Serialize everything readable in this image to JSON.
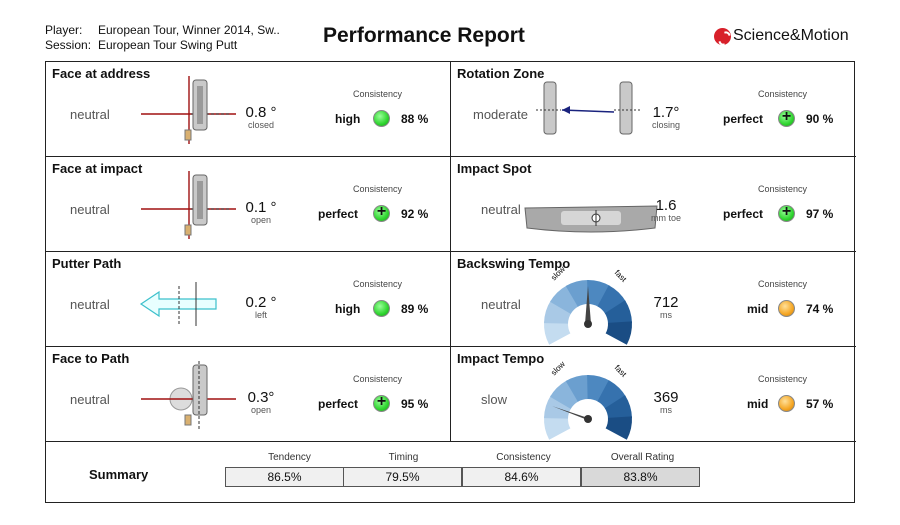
{
  "header": {
    "player_label": "Player:",
    "player_value": "European Tour, Winner 2014, Sw..",
    "session_label": "Session:",
    "session_value": "European Tour Swing Putt",
    "title": "Performance Report",
    "logo_text": "Science&Motion"
  },
  "consistency_label": "Consistency",
  "metrics": [
    {
      "title": "Face at address",
      "tendency": "neutral",
      "value": "0.8 °",
      "unit": "closed",
      "rating": "high",
      "percent": "88 %",
      "ball": "high"
    },
    {
      "title": "Rotation Zone",
      "tendency": "moderate",
      "value": "1.7°",
      "unit": "closing",
      "rating": "perfect",
      "percent": "90 %",
      "ball": "perfect"
    },
    {
      "title": "Face at impact",
      "tendency": "neutral",
      "value": "0.1 °",
      "unit": "open",
      "rating": "perfect",
      "percent": "92 %",
      "ball": "perfect"
    },
    {
      "title": "Impact Spot",
      "tendency": "neutral",
      "value": "1.6",
      "unit": "mm toe",
      "rating": "perfect",
      "percent": "97 %",
      "ball": "perfect"
    },
    {
      "title": "Putter Path",
      "tendency": "neutral",
      "value": "0.2 °",
      "unit": "left",
      "rating": "high",
      "percent": "89 %",
      "ball": "high"
    },
    {
      "title": "Backswing Tempo",
      "tendency": "neutral",
      "value": "712",
      "unit": "ms",
      "rating": "mid",
      "percent": "74 %",
      "ball": "mid"
    },
    {
      "title": "Face to Path",
      "tendency": "neutral",
      "value": "0.3°",
      "unit": "open",
      "rating": "perfect",
      "percent": "95 %",
      "ball": "perfect"
    },
    {
      "title": "Impact Tempo",
      "tendency": "slow",
      "value": "369",
      "unit": "ms",
      "rating": "mid",
      "percent": "57 %",
      "ball": "mid"
    }
  ],
  "gauges": {
    "slow_label": "slow",
    "fast_label": "fast",
    "backswing_needle_fraction": 0.5,
    "impact_needle_fraction": 0.2
  },
  "summary": {
    "label": "Summary",
    "columns": [
      {
        "header": "Tendency",
        "value": "86.5%"
      },
      {
        "header": "Timing",
        "value": "79.5%"
      },
      {
        "header": "Consistency",
        "value": "84.6%"
      },
      {
        "header": "Overall Rating",
        "value": "83.8%"
      }
    ]
  },
  "colors": {
    "green_ball": "#2fd42f",
    "orange_ball": "#f5a623",
    "gauge_dark": "#1f5f96",
    "gauge_light": "#a9c9e6",
    "arrow_cyan": "#7fe0e8",
    "face_line_red": "#a01010"
  }
}
